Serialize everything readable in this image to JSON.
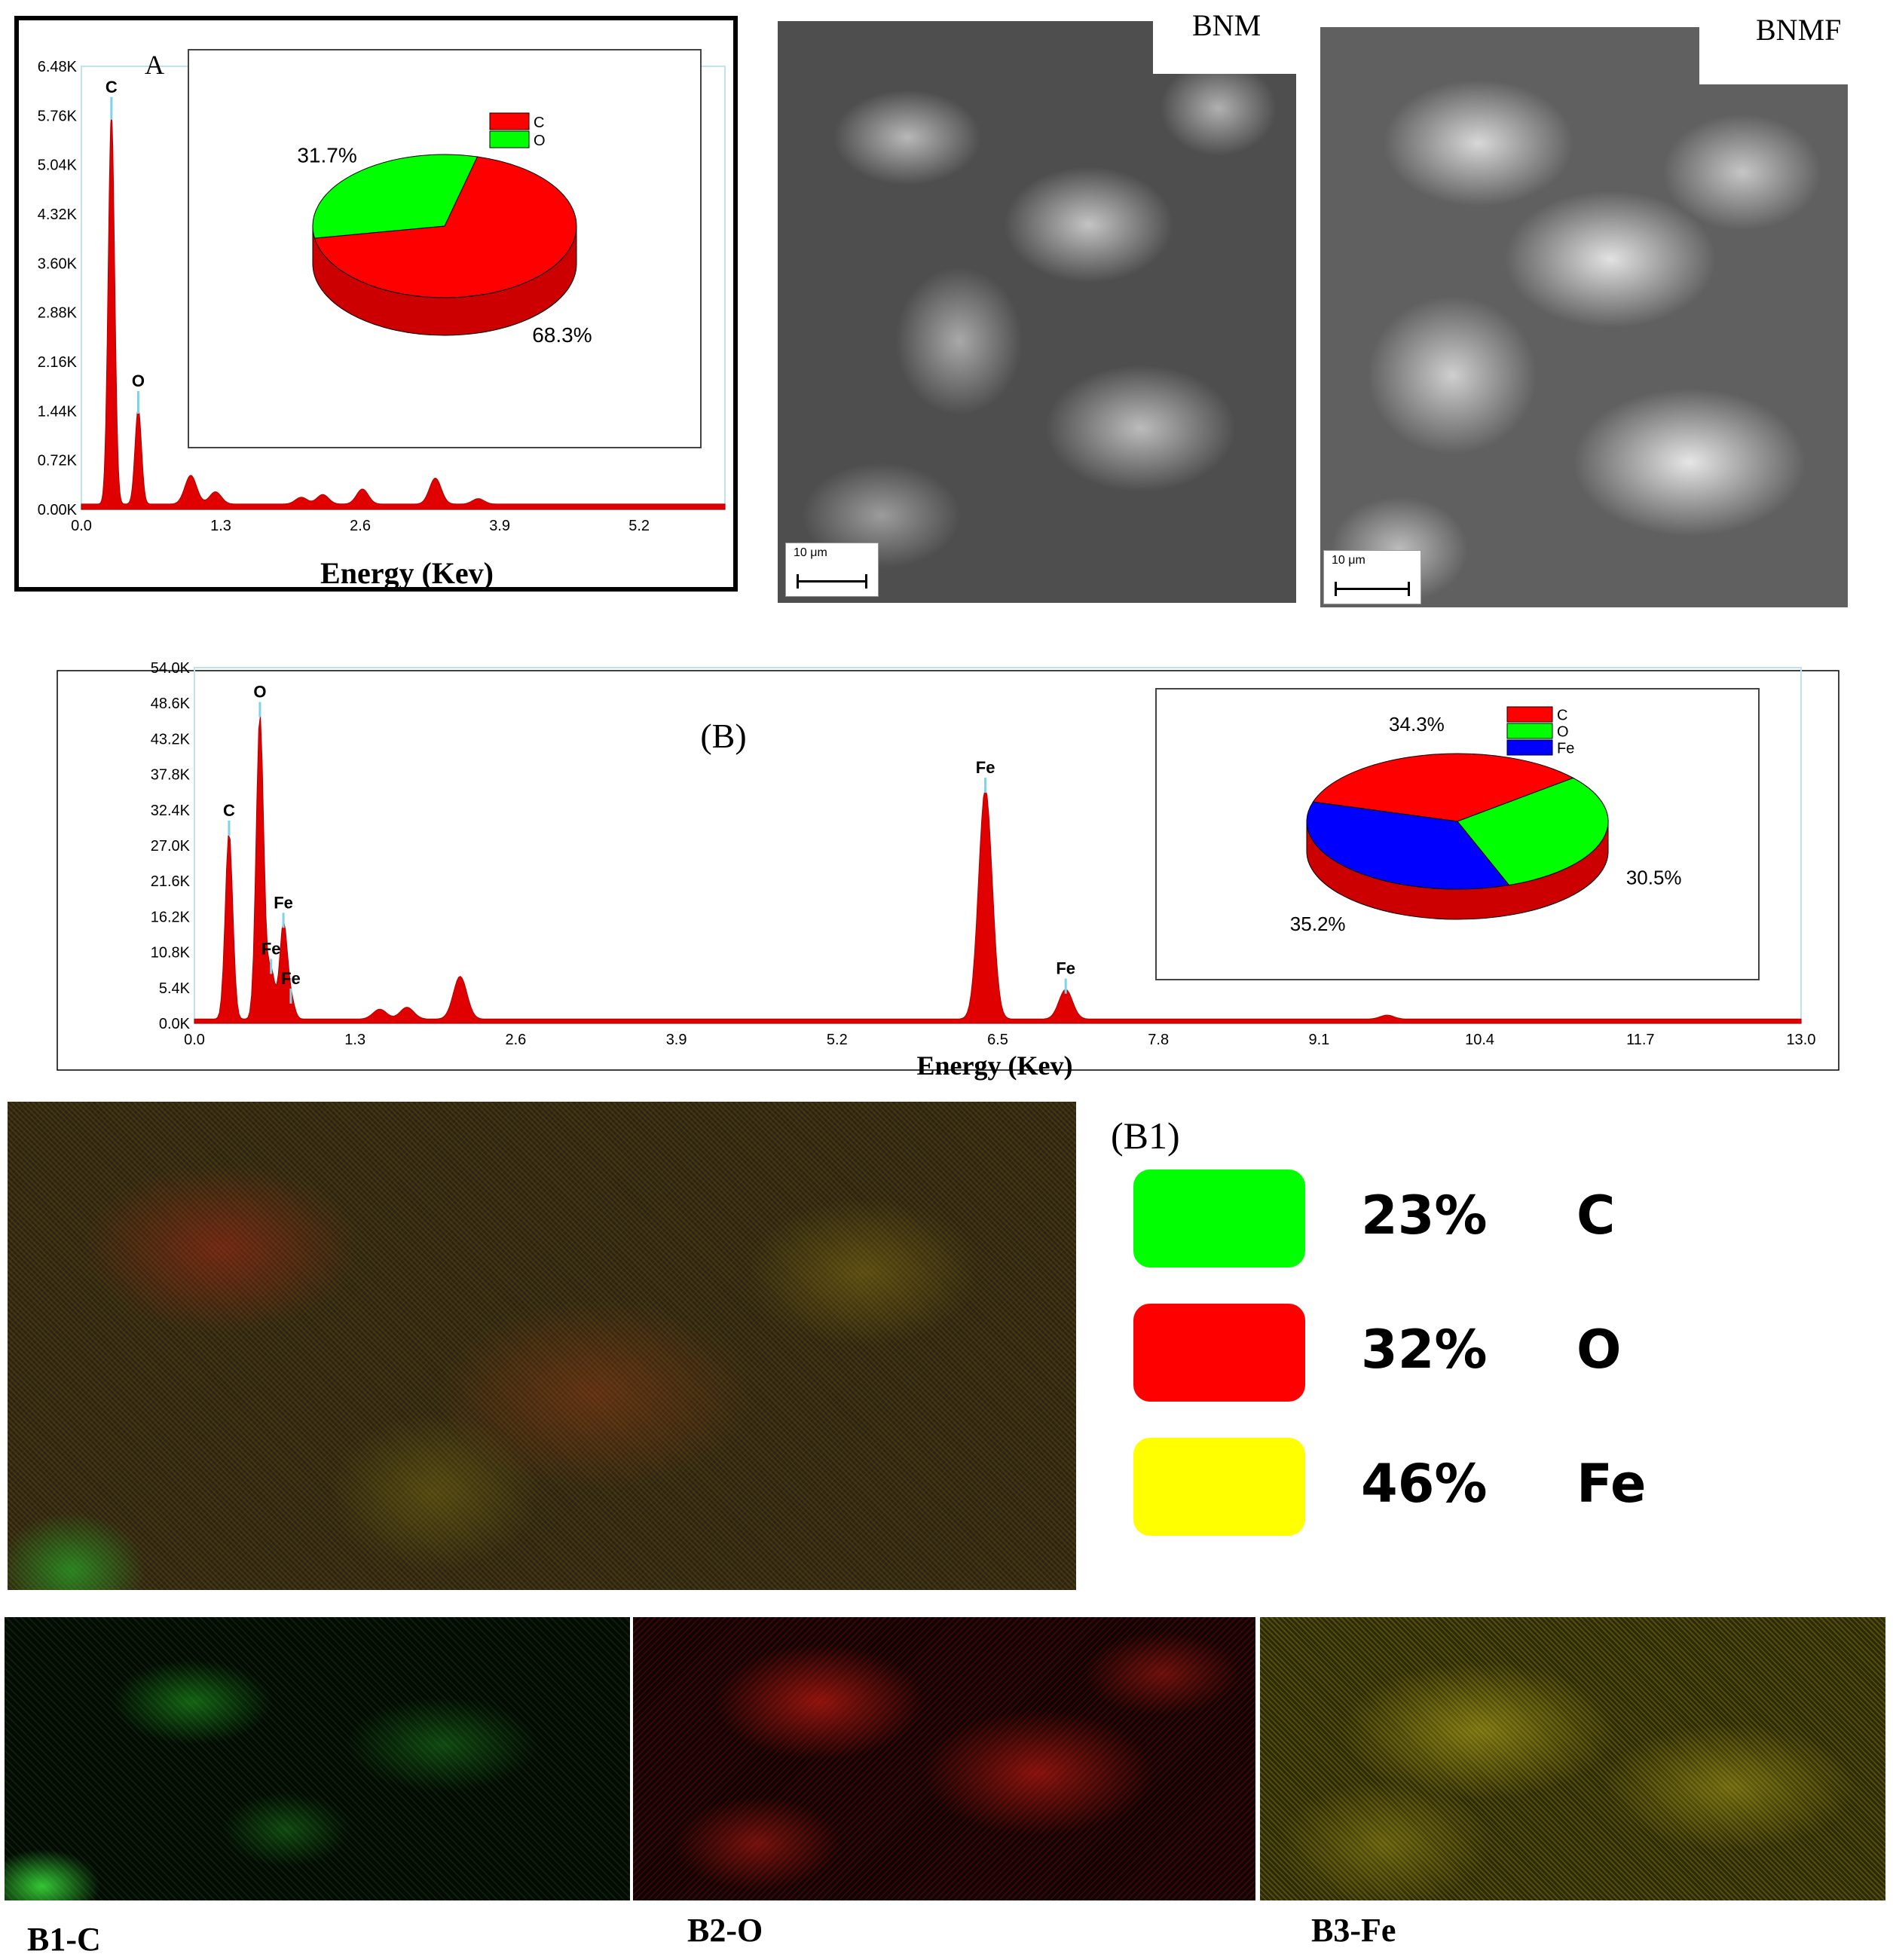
{
  "chart_data": [
    {
      "id": "A",
      "type": "line",
      "panel_label": "A",
      "xlabel": "Energy (Kev)",
      "xticks": [
        "0.0",
        "1.3",
        "2.6",
        "3.9",
        "5.2"
      ],
      "yticks": [
        "0.00K",
        "0.72K",
        "1.44K",
        "2.16K",
        "2.88K",
        "3.60K",
        "4.32K",
        "5.04K",
        "5.76K",
        "6.48K"
      ],
      "xlim": [
        0,
        6.0
      ],
      "ylim": [
        0,
        6.48
      ],
      "peaks": [
        {
          "x": 0.28,
          "y": 5.7,
          "label": "C"
        },
        {
          "x": 0.53,
          "y": 1.4,
          "label": "O"
        },
        {
          "x": 1.02,
          "y": 0.42,
          "label": ""
        },
        {
          "x": 1.25,
          "y": 0.18,
          "label": ""
        },
        {
          "x": 2.05,
          "y": 0.1,
          "label": ""
        },
        {
          "x": 2.25,
          "y": 0.14,
          "label": ""
        },
        {
          "x": 2.62,
          "y": 0.22,
          "label": ""
        },
        {
          "x": 3.3,
          "y": 0.38,
          "label": ""
        },
        {
          "x": 3.7,
          "y": 0.08,
          "label": ""
        }
      ],
      "pie": {
        "legend": [
          "C",
          "O"
        ],
        "values": [
          68.3,
          31.7
        ],
        "value_labels": [
          "68.3%",
          "31.7%"
        ],
        "colors": [
          "#ff0000",
          "#00ff00"
        ]
      }
    },
    {
      "id": "B",
      "type": "line",
      "panel_label": "(B)",
      "xlabel": "Energy (Kev)",
      "xticks": [
        "0.0",
        "1.3",
        "2.6",
        "3.9",
        "5.2",
        "6.5",
        "7.8",
        "9.1",
        "10.4",
        "11.7",
        "13.0"
      ],
      "yticks": [
        "0.0K",
        "5.4K",
        "10.8K",
        "16.2K",
        "21.6K",
        "27.0K",
        "32.4K",
        "37.8K",
        "43.2K",
        "48.6K",
        "54.0K"
      ],
      "xlim": [
        0,
        13.0
      ],
      "ylim": [
        0,
        54.0
      ],
      "peaks": [
        {
          "x": 0.28,
          "y": 28.5,
          "label": "C"
        },
        {
          "x": 0.53,
          "y": 46.5,
          "label": "O"
        },
        {
          "x": 0.62,
          "y": 7.5,
          "label": "Fe"
        },
        {
          "x": 0.72,
          "y": 14.5,
          "label": "Fe"
        },
        {
          "x": 0.78,
          "y": 3.0,
          "label": "Fe"
        },
        {
          "x": 1.5,
          "y": 1.5,
          "label": ""
        },
        {
          "x": 1.72,
          "y": 1.8,
          "label": ""
        },
        {
          "x": 2.15,
          "y": 6.5,
          "label": ""
        },
        {
          "x": 6.4,
          "y": 35.0,
          "label": "Fe"
        },
        {
          "x": 7.05,
          "y": 4.5,
          "label": "Fe"
        },
        {
          "x": 9.65,
          "y": 0.6,
          "label": ""
        }
      ],
      "pie": {
        "legend": [
          "C",
          "O",
          "Fe"
        ],
        "values": [
          34.3,
          30.5,
          35.2
        ],
        "value_labels": [
          "34.3%",
          "30.5%",
          "35.2%"
        ],
        "colors": [
          "#ff0000",
          "#00ff00",
          "#0000ff"
        ]
      }
    }
  ],
  "sem": {
    "bnm_label": "BNM",
    "bnmf_label": "BNMF",
    "scale_bar": "10 μm"
  },
  "mapping": {
    "panel_label": "(B1)",
    "legend": [
      {
        "percent": "23%",
        "element": "C",
        "color": "#00ff00"
      },
      {
        "percent": "32%",
        "element": "O",
        "color": "#ff0000"
      },
      {
        "percent": "46%",
        "element": "Fe",
        "color": "#ffff00"
      }
    ],
    "captions": [
      "B1-C",
      "B2-O",
      "B3-Fe"
    ]
  }
}
